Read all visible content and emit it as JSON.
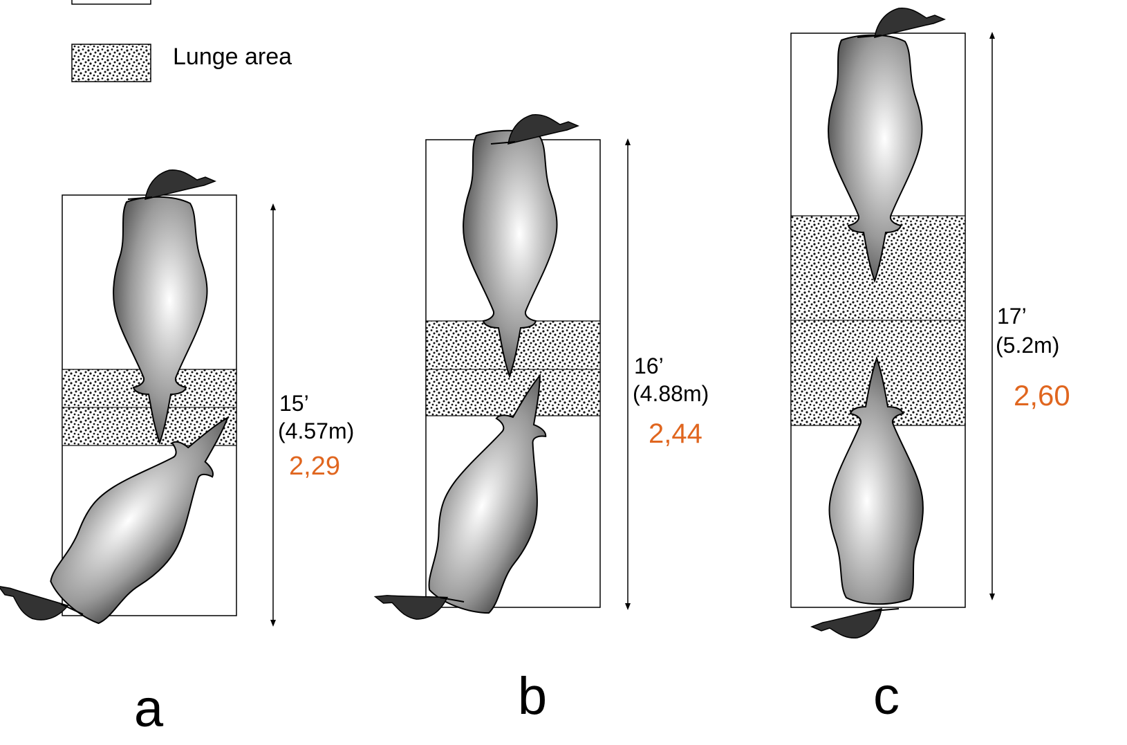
{
  "legend": {
    "lunge_label": "Lunge area"
  },
  "panels": [
    {
      "letter": "a",
      "length_ft": "15’",
      "length_m": "(4.57m)",
      "ratio": "2,29"
    },
    {
      "letter": "b",
      "length_ft": "16’",
      "length_m": "(4.88m)",
      "ratio": "2,44"
    },
    {
      "letter": "c",
      "length_ft": "17’",
      "length_m": "(5.2m)",
      "ratio": "2,60"
    }
  ],
  "colors": {
    "ratio_text": "#e0661f",
    "outline": "#000000",
    "cow_light": "#ffffff",
    "cow_dark": "#2a2a2a"
  }
}
